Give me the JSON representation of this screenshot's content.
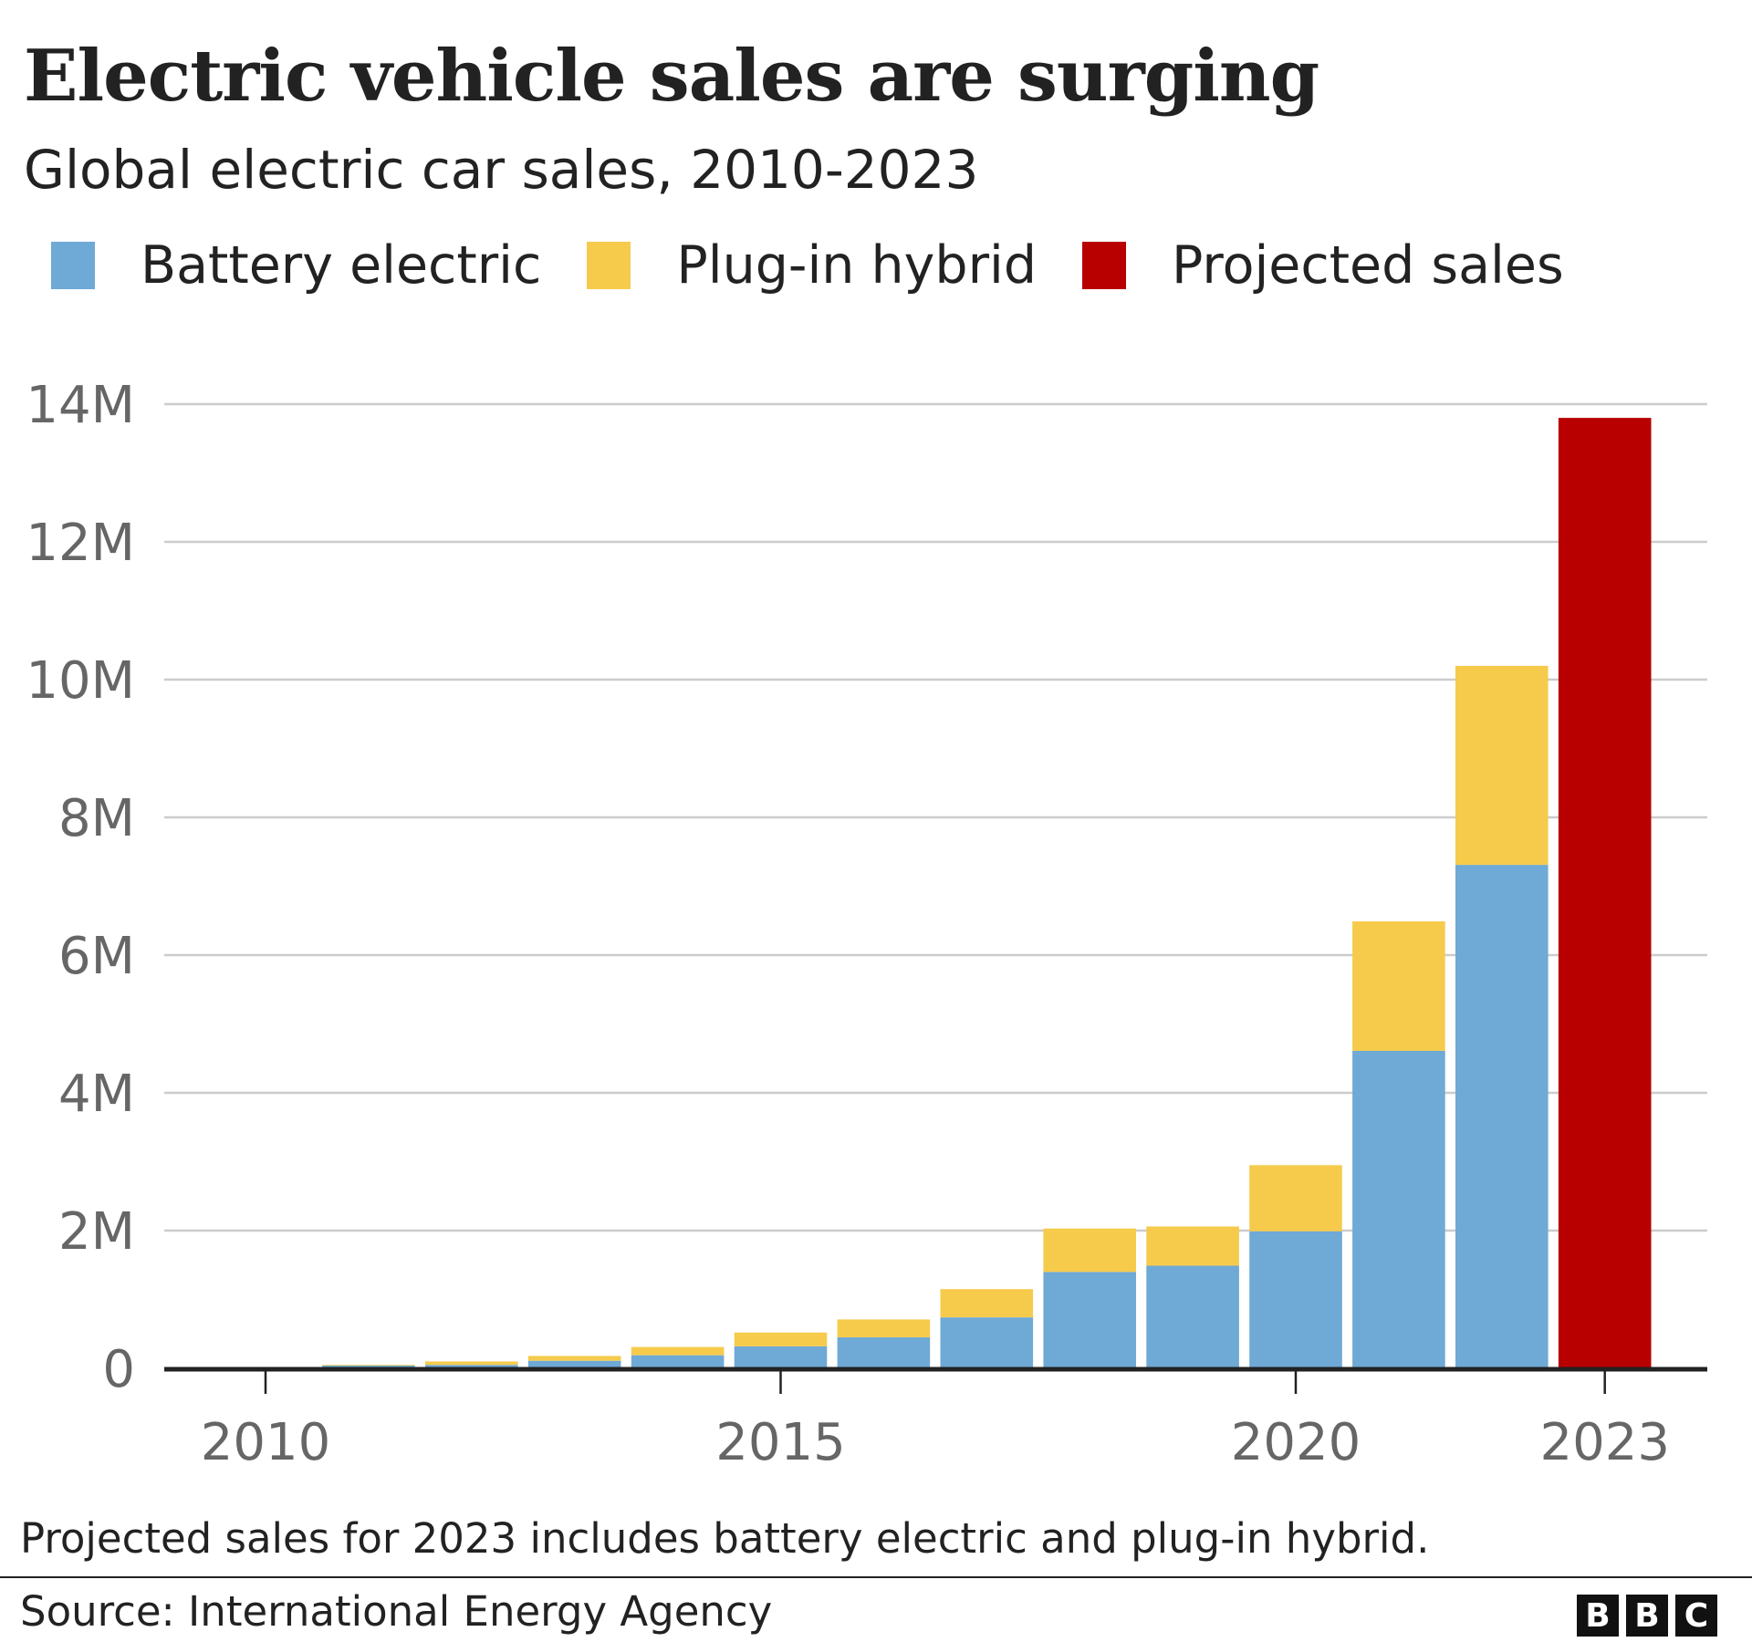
{
  "chart_data": {
    "type": "bar",
    "stacked": true,
    "title": "Electric vehicle sales are surging",
    "subtitle": "Global electric car sales, 2010-2023",
    "categories": [
      "2010",
      "2011",
      "2012",
      "2013",
      "2014",
      "2015",
      "2016",
      "2017",
      "2018",
      "2019",
      "2020",
      "2021",
      "2022",
      "2023"
    ],
    "series": [
      {
        "name": "Battery electric",
        "color": "#6fa9d6",
        "values": [
          0.01,
          0.04,
          0.05,
          0.11,
          0.19,
          0.32,
          0.45,
          0.74,
          1.4,
          1.49,
          1.99,
          4.61,
          7.31,
          null
        ]
      },
      {
        "name": "Plug-in hybrid",
        "color": "#f6cb4c",
        "values": [
          0.0,
          0.01,
          0.05,
          0.07,
          0.12,
          0.2,
          0.26,
          0.41,
          0.63,
          0.57,
          0.96,
          1.88,
          2.89,
          null
        ]
      },
      {
        "name": "Projected sales",
        "color": "#b80000",
        "values": [
          null,
          null,
          null,
          null,
          null,
          null,
          null,
          null,
          null,
          null,
          null,
          null,
          null,
          13.8
        ]
      }
    ],
    "unit": "millions",
    "ylim": [
      0,
      14
    ],
    "yticks": [
      0,
      2,
      4,
      6,
      8,
      10,
      12,
      14
    ],
    "ytick_labels": [
      "0",
      "2M",
      "4M",
      "6M",
      "8M",
      "10M",
      "12M",
      "14M"
    ],
    "xtick_labels": [
      "2010",
      "2015",
      "2020",
      "2023"
    ],
    "grid": true,
    "legend": "top-left",
    "note": "Projected sales for 2023 includes battery electric and plug-in hybrid.",
    "source": "Source: International Energy Agency"
  },
  "logo": "BBC"
}
